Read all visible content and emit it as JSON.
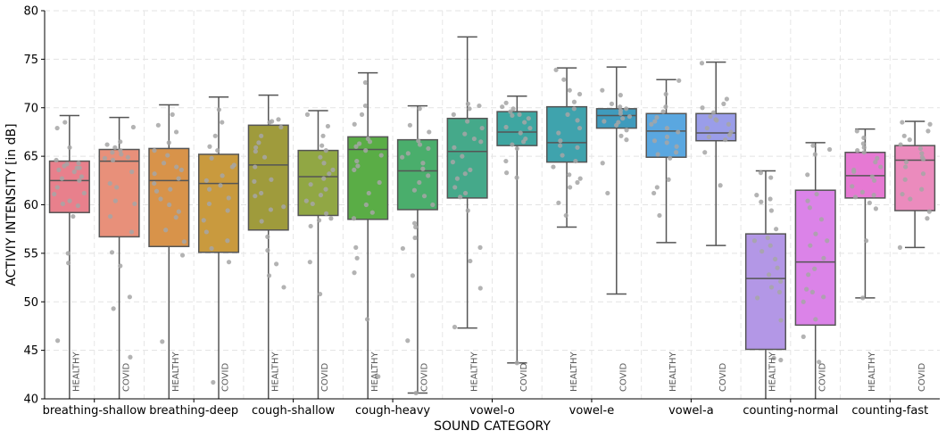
{
  "chart_data": {
    "type": "box",
    "xlabel": "SOUND CATEGORY",
    "ylabel": "ACTIVIY INTENSITY [in dB]",
    "ylim": [
      40,
      80
    ],
    "yticks": [
      40,
      45,
      50,
      55,
      60,
      65,
      70,
      75,
      80
    ],
    "grid": true,
    "categories": [
      "breathing-shallow",
      "breathing-deep",
      "cough-shallow",
      "cough-heavy",
      "vowel-o",
      "vowel-e",
      "vowel-a",
      "counting-normal",
      "counting-fast"
    ],
    "group_labels": [
      "HEALTHY",
      "COVID"
    ],
    "boxes": [
      {
        "category": "breathing-shallow",
        "group": "HEALTHY",
        "color": "#e8808c",
        "whislo": 40,
        "q1": 59.2,
        "med": 62.5,
        "q3": 64.5,
        "whishi": 69.2,
        "points": [
          63.8,
          64.6,
          64.2,
          63.8,
          63.6,
          62.5,
          61.8,
          61.2,
          60.1,
          59.9,
          61.1,
          62.7,
          63.4,
          65.9,
          67.9,
          68.5,
          58.8,
          55,
          54,
          46,
          64.3,
          62.9,
          64.0,
          60.4
        ]
      },
      {
        "category": "breathing-shallow",
        "group": "COVID",
        "color": "#e8907a",
        "whislo": 40,
        "q1": 56.7,
        "med": 64.5,
        "q3": 65.7,
        "whishi": 69,
        "points": [
          65.2,
          65.9,
          64.6,
          65.6,
          66.2,
          64.8,
          63.4,
          62.2,
          61.8,
          60.1,
          58.8,
          66.5,
          68,
          57.2,
          55.1,
          53.7,
          50.5,
          49.3,
          44.3,
          65.4,
          64.9,
          60.4
        ]
      },
      {
        "category": "breathing-deep",
        "group": "HEALTHY",
        "color": "#d8934a",
        "whislo": 40,
        "q1": 55.7,
        "med": 62.5,
        "q3": 65.8,
        "whishi": 70.3,
        "points": [
          65.1,
          64.3,
          63.6,
          63.2,
          62.7,
          62.2,
          61.6,
          60.6,
          60.0,
          59.3,
          58.7,
          56.2,
          66.4,
          67.5,
          68.2,
          69.3,
          54.8,
          45.9,
          63.9,
          65.6,
          61.4,
          57.4
        ]
      },
      {
        "category": "breathing-deep",
        "group": "COVID",
        "color": "#c99a3e",
        "whislo": 40,
        "q1": 55.1,
        "med": 62.2,
        "q3": 65.2,
        "whishi": 71.1,
        "points": [
          64.8,
          63.9,
          63.0,
          62.5,
          61.6,
          60.7,
          59.4,
          58.4,
          57.2,
          55.5,
          54.1,
          66.0,
          67.1,
          68.5,
          69.8,
          41.7,
          64.1,
          62.0,
          60.1,
          56.3,
          65.6
        ]
      },
      {
        "category": "cough-shallow",
        "group": "HEALTHY",
        "color": "#9f9b3c",
        "whislo": 40,
        "q1": 57.4,
        "med": 64.1,
        "q3": 68.2,
        "whishi": 71.3,
        "points": [
          68.8,
          68.5,
          68.0,
          67.1,
          66.4,
          65.5,
          64.9,
          63.9,
          62.6,
          61.2,
          59.8,
          58.3,
          56.7,
          55.3,
          53.9,
          52.7,
          51.5,
          68.6,
          65.9,
          62.4,
          59.5,
          60.9
        ]
      },
      {
        "category": "cough-shallow",
        "group": "COVID",
        "color": "#91a744",
        "whislo": 40,
        "q1": 58.9,
        "med": 62.9,
        "q3": 65.6,
        "whishi": 69.7,
        "points": [
          65.6,
          64.9,
          64.3,
          63.6,
          62.7,
          62.1,
          61.6,
          61.0,
          60.1,
          59.1,
          58.4,
          57.8,
          54.1,
          50.8,
          66.1,
          67.1,
          68.1,
          69.3,
          63.2,
          60.4,
          58.6
        ]
      },
      {
        "category": "cough-heavy",
        "group": "HEALTHY",
        "color": "#5aad46",
        "whislo": 40,
        "q1": 58.5,
        "med": 65.7,
        "q3": 67.0,
        "whishi": 73.6,
        "points": [
          66.8,
          66.5,
          66.0,
          65.6,
          65.1,
          64.5,
          63.6,
          62.3,
          61.2,
          60.0,
          59.2,
          58.6,
          55.6,
          54.5,
          53.0,
          48.2,
          42.3,
          68.3,
          69.3,
          70.2,
          72.6,
          66.3,
          64.0
        ]
      },
      {
        "category": "cough-heavy",
        "group": "COVID",
        "color": "#4aae6c",
        "whislo": 40.6,
        "q1": 59.5,
        "med": 63.5,
        "q3": 66.7,
        "whishi": 70.2,
        "points": [
          66.6,
          66.2,
          65.8,
          64.9,
          64.3,
          63.7,
          63.0,
          62.3,
          61.5,
          60.9,
          60.0,
          58.1,
          57.7,
          56.6,
          55.5,
          52.7,
          46.0,
          40.6,
          67.5,
          68.2,
          69.9,
          65.3
        ]
      },
      {
        "category": "vowel-o",
        "group": "HEALTHY",
        "color": "#45a98a",
        "whislo": 47.3,
        "q1": 60.7,
        "med": 65.5,
        "q3": 68.9,
        "whishi": 77.3,
        "points": [
          70.4,
          69.9,
          69.3,
          68.6,
          67.9,
          67.3,
          66.5,
          65.9,
          65.0,
          64.4,
          63.6,
          62.7,
          61.8,
          60.8,
          59.4,
          55.6,
          54.2,
          51.4,
          47.4,
          70.2,
          66.8,
          63.2,
          61.2
        ]
      },
      {
        "category": "vowel-o",
        "group": "COVID",
        "color": "#3ea6a1",
        "whislo": 43.7,
        "q1": 66.1,
        "med": 67.5,
        "q3": 69.6,
        "whishi": 71.2,
        "points": [
          70.1,
          69.9,
          69.6,
          69.3,
          68.9,
          68.5,
          68.0,
          67.4,
          66.8,
          66.2,
          65.8,
          64.5,
          63.3,
          62.8,
          70.5,
          69.2,
          67.9,
          66.5,
          43.7
        ]
      },
      {
        "category": "vowel-e",
        "group": "HEALTHY",
        "color": "#3fa3ad",
        "whislo": 57.7,
        "q1": 64.4,
        "med": 66.4,
        "q3": 70.1,
        "whishi": 74.1,
        "points": [
          71.8,
          71.4,
          70.6,
          69.9,
          69.3,
          68.7,
          67.9,
          67.4,
          66.6,
          65.9,
          65.1,
          64.5,
          63.9,
          62.7,
          61.8,
          60.2,
          58.9,
          72.9,
          73.9,
          66.1,
          63.1,
          62.3
        ]
      },
      {
        "category": "vowel-e",
        "group": "COVID",
        "color": "#3f9bbd",
        "whislo": 50.8,
        "q1": 67.9,
        "med": 69.2,
        "q3": 69.9,
        "whishi": 74.2,
        "points": [
          70.1,
          69.9,
          69.7,
          69.4,
          69.1,
          68.9,
          68.6,
          68.2,
          67.7,
          67.1,
          66.7,
          64.3,
          61.2,
          71.8,
          71.3,
          70.4,
          68.5
        ]
      },
      {
        "category": "vowel-a",
        "group": "HEALTHY",
        "color": "#5aa7e0",
        "whislo": 56.1,
        "q1": 64.9,
        "med": 67.6,
        "q3": 69.4,
        "whishi": 72.9,
        "points": [
          69.6,
          69.0,
          68.6,
          68.3,
          67.9,
          67.5,
          67.0,
          66.6,
          66.0,
          65.4,
          64.8,
          62.6,
          61.8,
          61.2,
          58.9,
          72.8,
          71.4,
          70.1,
          66.4,
          65.2
        ]
      },
      {
        "category": "vowel-a",
        "group": "COVID",
        "color": "#9a9de9",
        "whislo": 55.8,
        "q1": 66.6,
        "med": 67.4,
        "q3": 69.4,
        "whishi": 74.7,
        "points": [
          70.9,
          70.4,
          70.0,
          69.5,
          69.1,
          68.8,
          68.3,
          67.9,
          67.5,
          67.0,
          66.7,
          65.4,
          62.0,
          74.6,
          68.7,
          67.2
        ]
      },
      {
        "category": "counting-normal",
        "group": "HEALTHY",
        "color": "#b397e6",
        "whislo": 40,
        "q1": 45.1,
        "med": 52.4,
        "q3": 57.0,
        "whishi": 63.5,
        "points": [
          63.3,
          62.8,
          61.0,
          60.3,
          59.4,
          57.5,
          56.6,
          55.8,
          55.2,
          54.4,
          53.5,
          52.8,
          52.1,
          51.5,
          51.0,
          50.4,
          48.1,
          44.2,
          44.0,
          60.6,
          56.3
        ]
      },
      {
        "category": "counting-normal",
        "group": "COVID",
        "color": "#db83e8",
        "whislo": 40,
        "q1": 47.6,
        "med": 54.1,
        "q3": 61.5,
        "whishi": 66.4,
        "points": [
          66.1,
          65.7,
          65.2,
          63.1,
          61.1,
          59.7,
          58.5,
          57.0,
          55.8,
          54.5,
          53.4,
          52.8,
          51.3,
          51.0,
          50.5,
          50.0,
          48.2,
          46.4,
          43.8,
          60.4,
          56.3
        ]
      },
      {
        "category": "counting-fast",
        "group": "HEALTHY",
        "color": "#e679d3",
        "whislo": 50.4,
        "q1": 60.7,
        "med": 63.0,
        "q3": 65.4,
        "whishi": 67.8,
        "points": [
          67.6,
          66.9,
          66.3,
          65.9,
          65.4,
          64.8,
          64.4,
          63.9,
          63.4,
          62.9,
          62.5,
          61.9,
          61.3,
          60.8,
          60.2,
          59.6,
          56.3,
          50.4,
          65.6,
          63.6,
          61.0
        ]
      },
      {
        "category": "counting-fast",
        "group": "COVID",
        "color": "#eb8bbd",
        "whislo": 55.6,
        "q1": 59.4,
        "med": 64.6,
        "q3": 66.1,
        "whishi": 68.6,
        "points": [
          68.3,
          67.6,
          67.1,
          66.7,
          66.2,
          65.8,
          65.3,
          64.9,
          64.4,
          63.9,
          63.2,
          62.6,
          61.6,
          60.6,
          59.3,
          58.6,
          55.6,
          68.5,
          64.7,
          61.1
        ]
      }
    ]
  }
}
